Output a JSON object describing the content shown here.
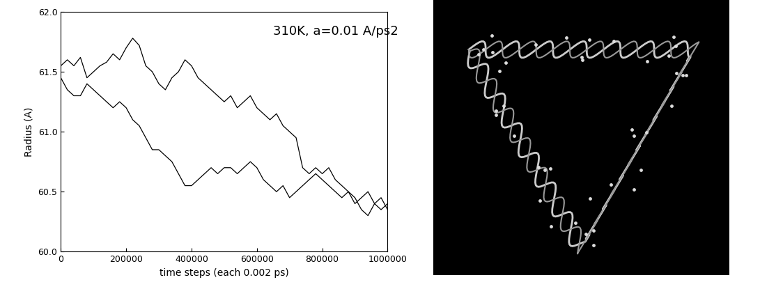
{
  "chart_data": {
    "type": "line",
    "x_label": "time steps (each 0.002 ps)",
    "y_label": "Radius (A)",
    "annotation": "310K, a=0.01 A/ps2",
    "x": [
      0,
      20000,
      40000,
      60000,
      80000,
      100000,
      120000,
      140000,
      160000,
      180000,
      200000,
      220000,
      240000,
      260000,
      280000,
      300000,
      320000,
      340000,
      360000,
      380000,
      400000,
      420000,
      440000,
      460000,
      480000,
      500000,
      520000,
      540000,
      560000,
      580000,
      600000,
      620000,
      640000,
      660000,
      680000,
      700000,
      720000,
      740000,
      760000,
      780000,
      800000,
      820000,
      840000,
      860000,
      880000,
      900000,
      920000,
      940000,
      960000,
      980000,
      1000000
    ],
    "series": [
      {
        "color": "#000000",
        "values": [
          61.55,
          61.6,
          61.55,
          61.62,
          61.45,
          61.5,
          61.55,
          61.58,
          61.65,
          61.6,
          61.7,
          61.78,
          61.72,
          61.55,
          61.5,
          61.4,
          61.35,
          61.45,
          61.5,
          61.6,
          61.55,
          61.45,
          61.4,
          61.35,
          61.3,
          61.25,
          61.3,
          61.2,
          61.25,
          61.3,
          61.2,
          61.15,
          61.1,
          61.15,
          61.05,
          61.0,
          60.95,
          60.7,
          60.65,
          60.7,
          60.65,
          60.7,
          60.6,
          60.55,
          60.5,
          60.45,
          60.35,
          60.3,
          60.4,
          60.35,
          60.4
        ]
      },
      {
        "color": "#000000",
        "values": [
          61.45,
          61.35,
          61.3,
          61.3,
          61.4,
          61.35,
          61.3,
          61.25,
          61.2,
          61.25,
          61.2,
          61.1,
          61.05,
          60.95,
          60.85,
          60.85,
          60.8,
          60.75,
          60.65,
          60.55,
          60.55,
          60.6,
          60.65,
          60.7,
          60.65,
          60.7,
          60.7,
          60.65,
          60.7,
          60.75,
          60.7,
          60.6,
          60.55,
          60.5,
          60.55,
          60.45,
          60.5,
          60.55,
          60.6,
          60.65,
          60.6,
          60.55,
          60.5,
          60.45,
          60.5,
          60.4,
          60.45,
          60.5,
          60.4,
          60.45,
          60.35
        ]
      }
    ],
    "xlim": [
      0,
      1000000
    ],
    "xticks": [
      0,
      200000,
      400000,
      600000,
      800000,
      1000000
    ],
    "ylim": [
      60.0,
      62.0
    ],
    "yticks": [
      {
        "value": 60.0,
        "label": "60.0"
      },
      {
        "value": 60.5,
        "label": "60.5"
      },
      {
        "value": 61.0,
        "label": "61.0"
      },
      {
        "value": 61.5,
        "label": "61.5"
      },
      {
        "value": 62.0,
        "label": "62.0"
      }
    ],
    "grid": false
  }
}
